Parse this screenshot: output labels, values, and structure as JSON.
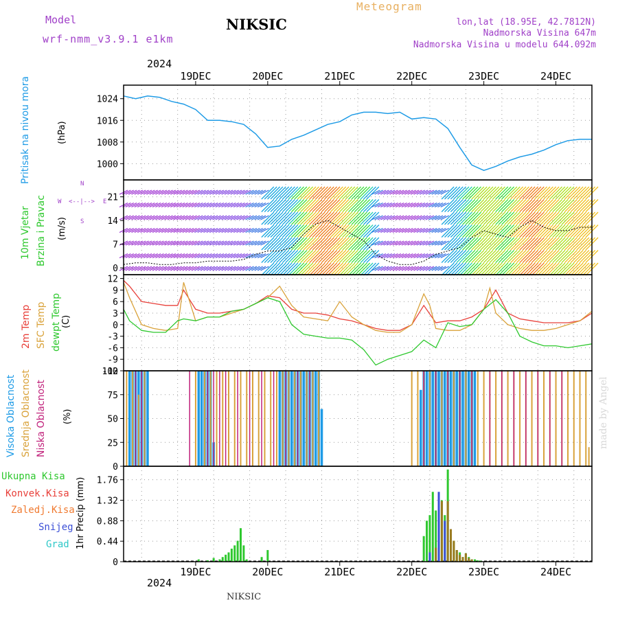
{
  "header": {
    "model_label": "Model",
    "model_name": "wrf-nmm_v3.9.1 e1km",
    "station": "NIKSIC",
    "meteogram_label": "Meteogram",
    "lonlat": "lon,lat (18.95E, 42.7812N)",
    "altitude": "Nadmorska Visina 647m",
    "model_altitude": "Nadmorska Visina u modelu 644.092m",
    "top_year": "2024",
    "footer_station": "NIKSIC",
    "watermark": "made by Angel"
  },
  "colors": {
    "pressure": "#1e9be6",
    "temp2m": "#e8403a",
    "sfc_temp": "#d9a23a",
    "dewpoint": "#2ec82e",
    "cloud_high": "#1e9be6",
    "cloud_mid": "#d9a23a",
    "cloud_low": "#c0207a",
    "precip_total": "#2ec82e",
    "precip_conv": "#e8403a",
    "precip_frozen": "#f07a30",
    "snow": "#3b4fd6",
    "hail": "#2ec8c8",
    "wind_axis": "#a040c8"
  },
  "x_axis": {
    "days": [
      "19DEC",
      "20DEC",
      "21DEC",
      "22DEC",
      "23DEC",
      "24DEC"
    ],
    "year": "2024",
    "start_hour": -12,
    "end_hour": 144
  },
  "wind_legend": {
    "n": "N",
    "w": "W",
    "e": "E",
    "s": "S",
    "arrow_up": "<--|-->",
    "arrow_down": "<--|-->"
  },
  "panels": {
    "pressure": {
      "ylabel_main": "Pritisak na nivou mora",
      "ylabel_unit": "(hPa)"
    },
    "wind": {
      "ylabel_main": "10m Vjetar",
      "ylabel_sub": "Brzina i Pravac",
      "ylabel_unit": "(m/s)"
    },
    "temp": {
      "ylabel_1": "2m Temp",
      "ylabel_2": "SFC Temp",
      "ylabel_3": "dewpt Temp",
      "ylabel_unit": "(C)"
    },
    "cloud": {
      "ylabel_1": "Visoka Oblacnost",
      "ylabel_2": "Srednja Oblacnost",
      "ylabel_3": "Niska Oblacnost",
      "ylabel_unit": "(%)"
    },
    "precip": {
      "legend": [
        "Ukupna Kisa",
        "Konvek.Kisa",
        "Zaledj.Kisa",
        "Snijeg",
        "Grad"
      ],
      "ylabel_unit": "1hr Precip (mm)"
    }
  },
  "chart_data": [
    {
      "type": "line",
      "id": "pressure",
      "ylabel": "Pritisak na nivou mora (hPa)",
      "ylim": [
        994,
        1029
      ],
      "yticks": [
        1000,
        1008,
        1016,
        1024
      ],
      "grid": true,
      "series": [
        {
          "x": [
            -12,
            -8,
            -4,
            0,
            4,
            8,
            12,
            16,
            20,
            24,
            28,
            32,
            36,
            40,
            44,
            48,
            52,
            56,
            60,
            64,
            68,
            72,
            76,
            80,
            84,
            88,
            92,
            96,
            100,
            104,
            108,
            112,
            116,
            120,
            124,
            128,
            132,
            136,
            140,
            144
          ],
          "values": [
            1025,
            1024,
            1025,
            1024.5,
            1023,
            1022,
            1020,
            1016,
            1016,
            1015.5,
            1014.5,
            1011,
            1006,
            1006.5,
            1009,
            1010.5,
            1012.5,
            1014.5,
            1015.5,
            1018,
            1019,
            1019,
            1018.5,
            1019,
            1016.5,
            1017,
            1016.5,
            1013,
            1006,
            999.5,
            997.5,
            999,
            1001,
            1002.5,
            1003.5,
            1005,
            1007,
            1008.5,
            1009,
            1009
          ]
        }
      ]
    },
    {
      "type": "line",
      "id": "wind",
      "ylabel": "10m Vjetar Brzina i Pravac (m/s)",
      "ylim": [
        -2,
        26
      ],
      "yticks": [
        0,
        7,
        14,
        21
      ],
      "grid": true,
      "series": [
        {
          "name": "speed",
          "x": [
            -12,
            -8,
            -4,
            0,
            4,
            8,
            12,
            16,
            20,
            24,
            28,
            32,
            36,
            40,
            44,
            48,
            52,
            56,
            60,
            64,
            68,
            72,
            76,
            80,
            84,
            88,
            92,
            96,
            100,
            104,
            108,
            112,
            116,
            120,
            124,
            128,
            132,
            136,
            140,
            144
          ],
          "values": [
            1,
            1.5,
            1.5,
            1,
            1,
            1.5,
            1.5,
            2,
            2,
            2,
            2.5,
            4,
            5,
            5,
            6,
            10,
            13,
            14,
            12,
            10,
            8,
            4,
            2,
            1,
            1,
            2,
            4,
            5,
            6,
            9,
            11,
            10,
            9,
            12,
            14,
            12,
            11,
            11,
            12,
            12
          ]
        }
      ]
    },
    {
      "type": "line",
      "id": "temp",
      "ylabel": "Temp (C)",
      "ylim": [
        -12,
        13
      ],
      "yticks": [
        -12,
        -9,
        -6,
        -3,
        0,
        3,
        6,
        9,
        12
      ],
      "grid": true,
      "series": [
        {
          "name": "2m Temp",
          "x": [
            -12,
            -10,
            -6,
            -2,
            2,
            6,
            8,
            12,
            16,
            20,
            24,
            28,
            32,
            36,
            40,
            44,
            48,
            52,
            56,
            60,
            64,
            68,
            72,
            76,
            80,
            84,
            88,
            92,
            96,
            100,
            104,
            108,
            112,
            116,
            120,
            124,
            128,
            132,
            136,
            140,
            144
          ],
          "values": [
            11.5,
            10,
            6,
            5.5,
            5,
            5,
            9,
            4,
            3,
            3,
            3.5,
            4,
            5.5,
            7.5,
            7,
            4,
            3,
            3,
            2.5,
            1.5,
            1,
            0,
            -1,
            -1.5,
            -1.5,
            0,
            5,
            0.5,
            1,
            1,
            2,
            4,
            9,
            3,
            1.5,
            1,
            0.5,
            0.5,
            0.5,
            1,
            3
          ]
        },
        {
          "name": "SFC Temp",
          "x": [
            -12,
            -10,
            -6,
            -2,
            2,
            6,
            8,
            10,
            12,
            16,
            20,
            24,
            28,
            32,
            36,
            40,
            44,
            48,
            52,
            56,
            60,
            64,
            68,
            72,
            76,
            80,
            84,
            88,
            90,
            92,
            96,
            100,
            104,
            108,
            110,
            112,
            116,
            120,
            124,
            128,
            132,
            136,
            140,
            144
          ],
          "values": [
            11,
            7,
            0,
            -1,
            -1.5,
            -1,
            11,
            6,
            1,
            2,
            2,
            3,
            4,
            5.5,
            7,
            10,
            5,
            2,
            1.5,
            1,
            6,
            2,
            0,
            -1.5,
            -2,
            -2,
            0,
            8,
            5,
            -1,
            -1.5,
            -1.5,
            0,
            4,
            9.5,
            3,
            0,
            -1,
            -1.5,
            -1.5,
            -1,
            0,
            1,
            3.5
          ]
        },
        {
          "name": "dewpt Temp",
          "x": [
            -12,
            -10,
            -6,
            -2,
            2,
            6,
            8,
            12,
            16,
            20,
            24,
            28,
            32,
            36,
            40,
            44,
            48,
            52,
            56,
            60,
            64,
            68,
            72,
            76,
            80,
            84,
            88,
            92,
            96,
            100,
            104,
            108,
            112,
            116,
            120,
            124,
            128,
            132,
            136,
            140,
            144
          ],
          "values": [
            4,
            1,
            -1.5,
            -2,
            -2,
            1,
            1.5,
            1,
            2,
            2,
            3.5,
            4,
            5.5,
            7,
            6,
            0,
            -2.5,
            -3,
            -3.5,
            -3.5,
            -4,
            -6.5,
            -10.5,
            -9,
            -8,
            -7,
            -4,
            -6,
            0.5,
            -0.5,
            0,
            4,
            6.5,
            3,
            -3,
            -4.5,
            -5.5,
            -5.5,
            -6,
            -5.5,
            -5
          ]
        }
      ]
    },
    {
      "type": "bar",
      "id": "cloud",
      "ylabel": "Oblacnost (%)",
      "ylim": [
        0,
        100
      ],
      "yticks": [
        0,
        25,
        50,
        75,
        100
      ],
      "grid": true,
      "series": [
        {
          "name": "Visoka Oblacnost",
          "x": [
            -10,
            -9,
            -8,
            -7,
            -6,
            -5,
            -4,
            13,
            14,
            15,
            16,
            17,
            18,
            40,
            41,
            42,
            43,
            44,
            45,
            46,
            47,
            48,
            49,
            50,
            51,
            52,
            53,
            54,
            87,
            88,
            89,
            90,
            91,
            92,
            93,
            94,
            95,
            96,
            97,
            98,
            99,
            100,
            101,
            102,
            103,
            104,
            105
          ],
          "values": [
            100,
            100,
            100,
            100,
            100,
            100,
            100,
            100,
            100,
            100,
            100,
            100,
            25,
            100,
            100,
            100,
            100,
            100,
            100,
            100,
            100,
            100,
            100,
            100,
            100,
            100,
            100,
            60,
            80,
            100,
            100,
            100,
            100,
            100,
            100,
            100,
            100,
            100,
            100,
            100,
            100,
            100,
            100,
            100,
            100,
            100,
            100
          ]
        },
        {
          "name": "Srednja Oblacnost",
          "x": [
            -11,
            -9,
            -7,
            -5,
            12,
            15,
            17,
            19,
            21,
            23,
            25,
            27,
            29,
            31,
            33,
            35,
            37,
            39,
            41,
            43,
            45,
            47,
            49,
            51,
            53,
            84,
            86,
            88,
            90,
            92,
            94,
            96,
            98,
            100,
            102,
            104,
            106,
            108,
            110,
            112,
            114,
            116,
            118,
            120,
            122,
            124,
            126,
            128,
            130,
            132,
            134,
            136,
            138,
            140,
            142,
            143
          ],
          "values": [
            100,
            100,
            75,
            100,
            100,
            100,
            100,
            100,
            100,
            100,
            100,
            100,
            100,
            100,
            100,
            100,
            100,
            100,
            100,
            100,
            100,
            100,
            100,
            100,
            100,
            100,
            100,
            100,
            100,
            100,
            100,
            100,
            100,
            100,
            100,
            100,
            100,
            100,
            100,
            100,
            100,
            100,
            100,
            100,
            100,
            100,
            100,
            100,
            100,
            100,
            100,
            100,
            100,
            100,
            100,
            20
          ]
        },
        {
          "name": "Niska Oblacnost",
          "x": [
            -8,
            -6,
            10,
            16,
            18,
            20,
            22,
            26,
            30,
            34,
            38,
            42,
            46,
            50,
            88,
            92,
            96,
            100,
            104,
            110,
            114,
            118,
            122,
            126,
            130,
            134
          ],
          "values": [
            100,
            100,
            100,
            100,
            100,
            100,
            100,
            100,
            100,
            100,
            100,
            100,
            100,
            100,
            100,
            100,
            100,
            100,
            100,
            100,
            100,
            100,
            100,
            100,
            100,
            100
          ]
        }
      ]
    },
    {
      "type": "bar",
      "id": "precip",
      "ylabel": "1hr Precip (mm)",
      "ylim": [
        0,
        2.05
      ],
      "yticks": [
        0,
        0.44,
        0.88,
        1.32,
        1.76
      ],
      "grid": true,
      "series": [
        {
          "name": "Ukupna Kisa",
          "x": [
            13,
            16,
            18,
            20,
            21,
            22,
            23,
            24,
            25,
            26,
            27,
            28,
            29,
            34,
            36,
            88,
            89,
            90,
            91,
            92,
            93,
            94,
            95,
            96,
            97,
            98,
            99,
            100,
            101,
            102,
            103,
            104,
            105,
            106,
            107
          ],
          "values": [
            0.05,
            0.03,
            0.08,
            0.05,
            0.1,
            0.15,
            0.2,
            0.28,
            0.35,
            0.45,
            0.72,
            0.35,
            0.05,
            0.1,
            0.25,
            0.55,
            0.88,
            1.0,
            1.5,
            1.1,
            0.9,
            1.32,
            1.0,
            1.98,
            0.6,
            0.45,
            0.25,
            0.2,
            0.1,
            0.18,
            0.1,
            0.05,
            0.05,
            0.03,
            0.02
          ]
        },
        {
          "name": "Snijeg",
          "x": [
            90,
            93,
            95
          ],
          "values": [
            0.2,
            1.5,
            0.88
          ]
        },
        {
          "name": "Zaledj.Kisa",
          "x": [
            92,
            94,
            96,
            97,
            98,
            99,
            100,
            101,
            102,
            103,
            104
          ],
          "values": [
            0.3,
            1.3,
            1.3,
            0.7,
            0.45,
            0.25,
            0.15,
            0.1,
            0.18,
            0.08,
            0.05
          ]
        }
      ]
    }
  ]
}
